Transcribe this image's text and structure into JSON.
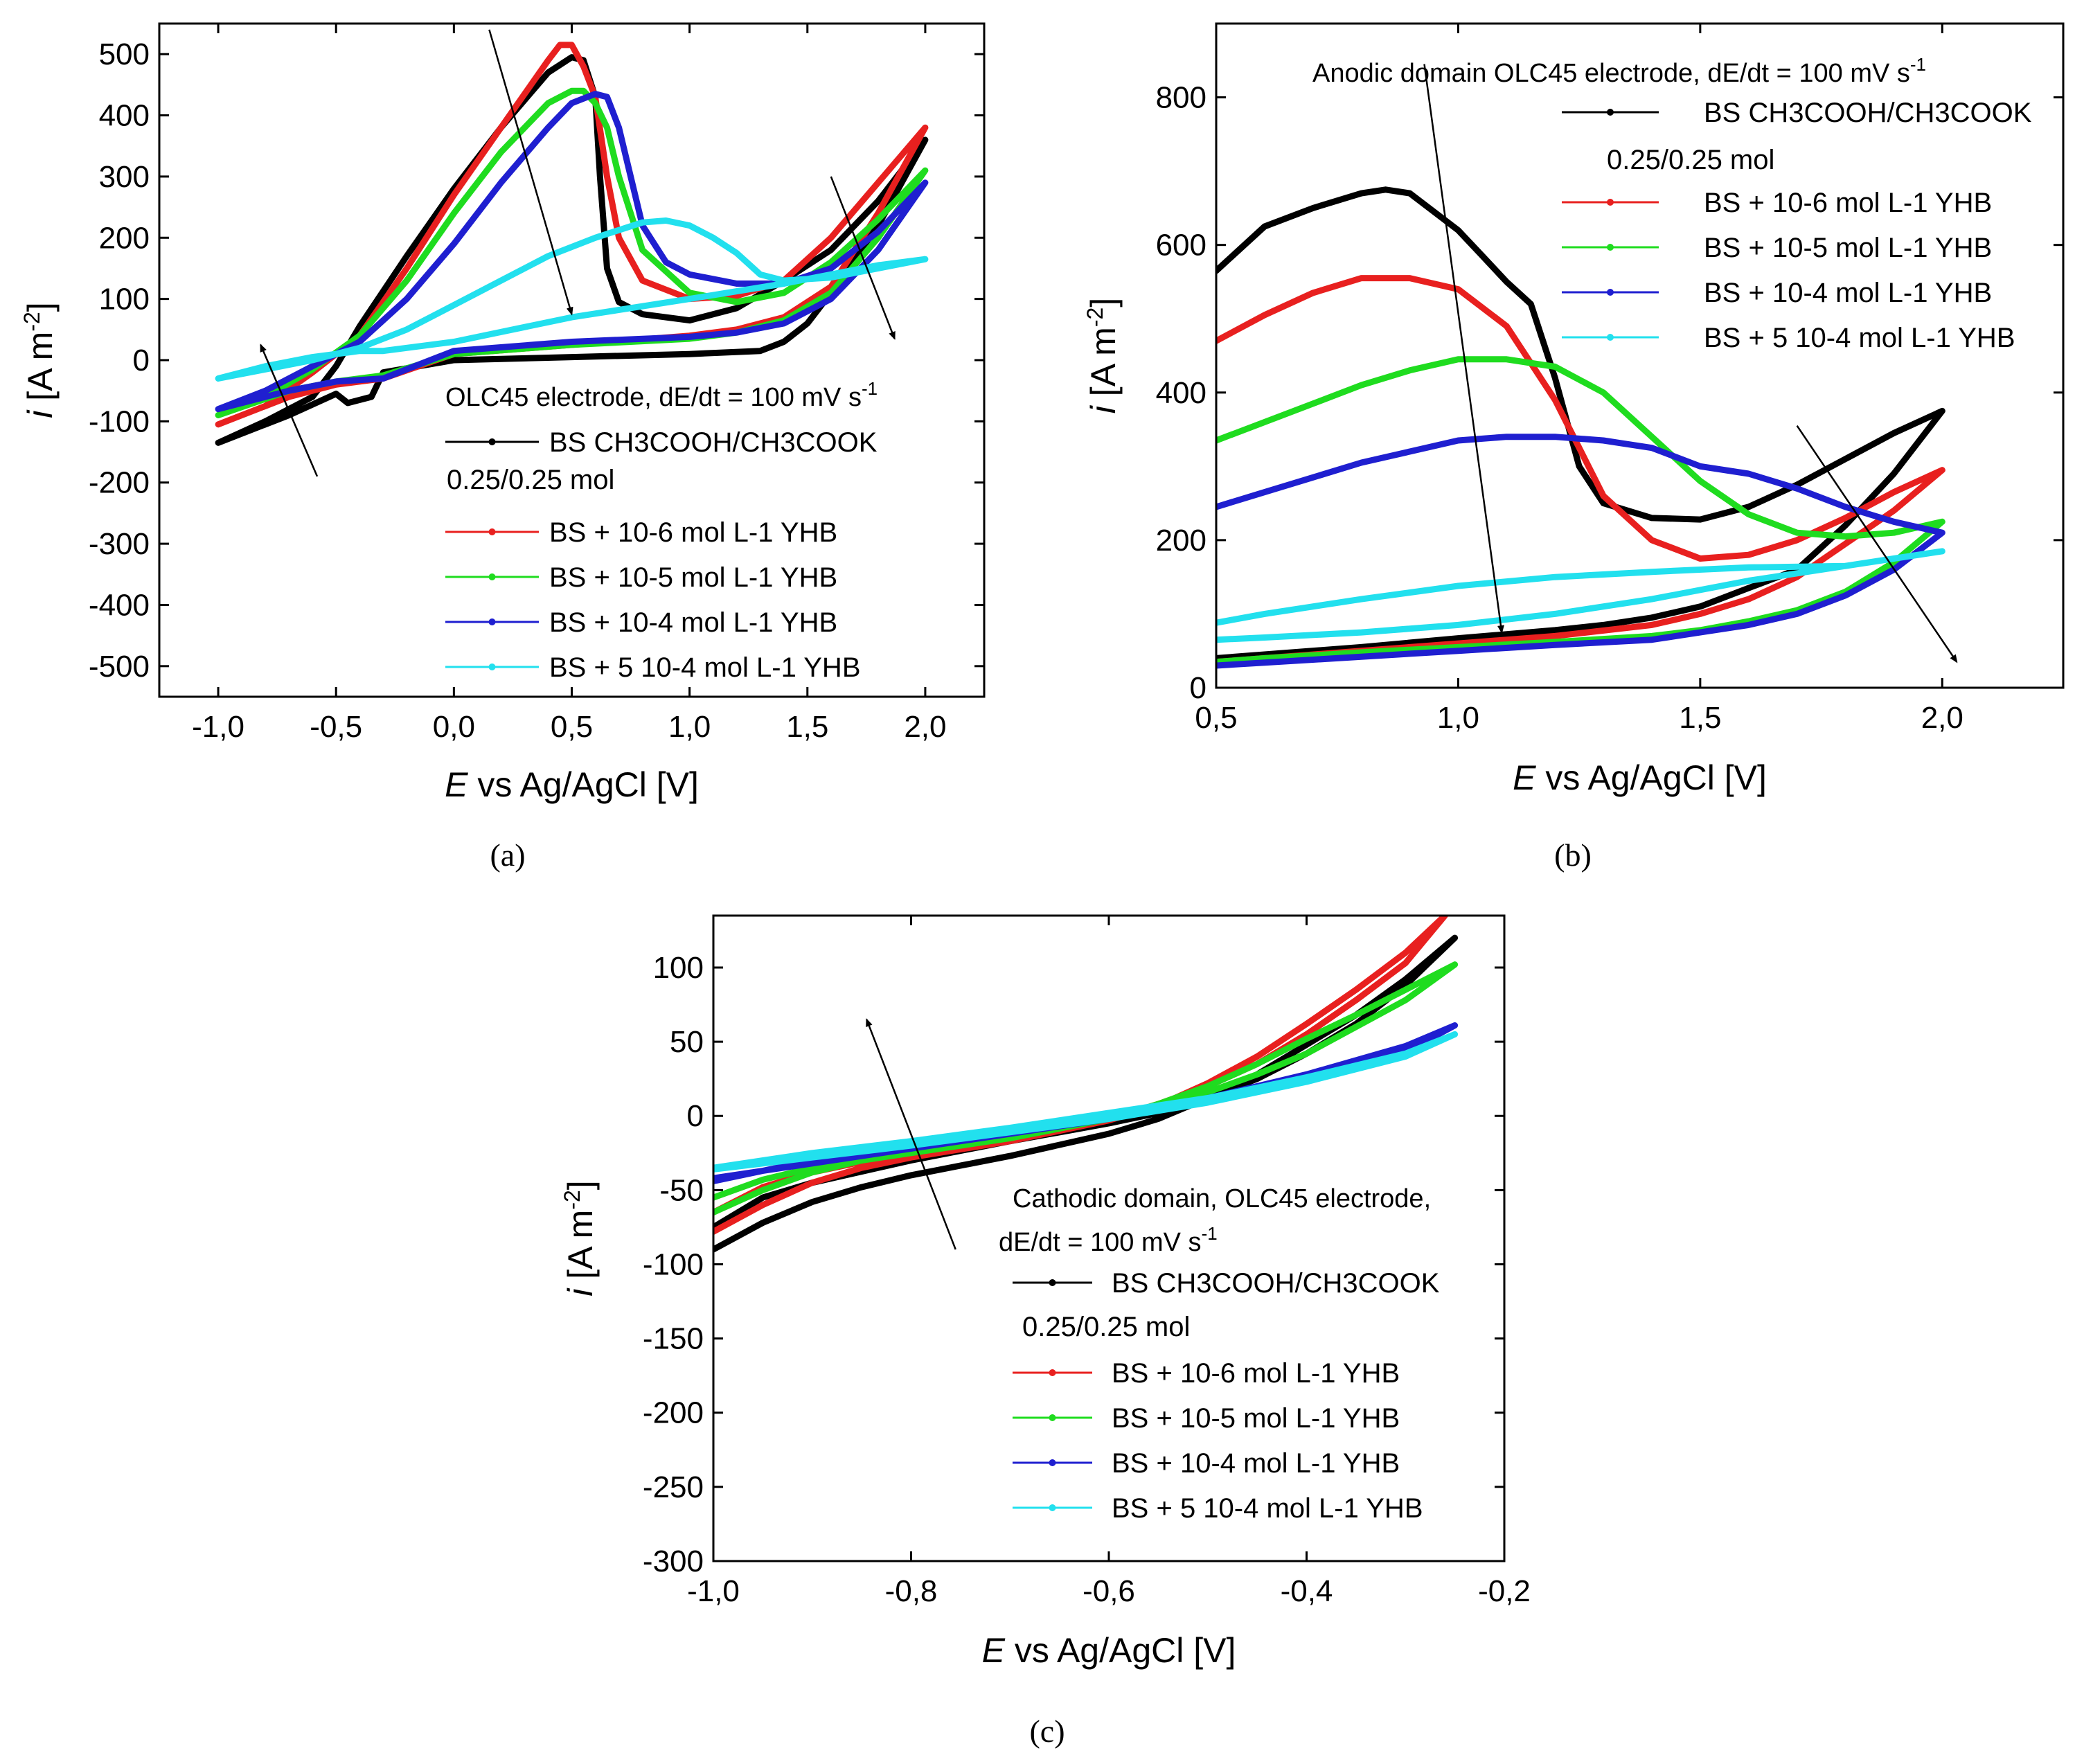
{
  "colors": {
    "bs": "#000000",
    "c1e6": "#e8201f",
    "c1e5": "#1fdc1f",
    "c1e4": "#1f1fd0",
    "c5e4": "#22e0ee"
  },
  "chart_data": [
    {
      "panel": "a",
      "panel_label": "(a)",
      "type": "line",
      "title": "OLC45 electrode, dE/dt = 100 mV s",
      "title_sup": "-1",
      "legend_note": "0.25/0.25 mol",
      "xlabel_italic": "E",
      "xlabel": " vs Ag/AgCl [V]",
      "ylabel_italic": "i",
      "ylabel": " [A m",
      "ylabel_sup": "-2",
      "ylabel_end": "]",
      "xlim": [
        -1.25,
        2.25
      ],
      "ylim": [
        -550,
        550
      ],
      "xticks": [
        "-1,0",
        "-0,5",
        "0,0",
        "0,5",
        "1,0",
        "1,5",
        "2,0"
      ],
      "yticks": [
        "-500",
        "-400",
        "-300",
        "-200",
        "-100",
        "0",
        "100",
        "200",
        "300",
        "400",
        "500"
      ],
      "series": [
        {
          "name": "BS CH3COOH/CH3COOK",
          "color": "bs",
          "x": [
            -1.0,
            -0.8,
            -0.6,
            -0.5,
            -0.4,
            -0.2,
            0.0,
            0.2,
            0.4,
            0.5,
            0.55,
            0.6,
            0.62,
            0.65,
            0.7,
            0.8,
            1.0,
            1.2,
            1.4,
            1.6,
            1.8,
            2.0,
            1.8,
            1.6,
            1.5,
            1.4,
            1.3,
            1.0,
            0.5,
            0.0,
            -0.3,
            -0.35,
            -0.45,
            -0.5,
            -0.7,
            -1.0
          ],
          "y": [
            -135,
            -100,
            -60,
            -10,
            55,
            170,
            280,
            380,
            470,
            495,
            490,
            430,
            300,
            150,
            95,
            75,
            65,
            85,
            130,
            180,
            260,
            360,
            220,
            110,
            60,
            30,
            15,
            10,
            5,
            0,
            -20,
            -60,
            -70,
            -55,
            -90,
            -135
          ]
        },
        {
          "name": "BS + 10-6 mol L-1 YHB",
          "color": "c1e6",
          "x": [
            -1.0,
            -0.8,
            -0.6,
            -0.4,
            -0.2,
            0.0,
            0.2,
            0.4,
            0.45,
            0.5,
            0.55,
            0.6,
            0.65,
            0.7,
            0.8,
            1.0,
            1.2,
            1.4,
            1.6,
            1.8,
            2.0,
            1.8,
            1.6,
            1.4,
            1.2,
            1.0,
            0.5,
            0.0,
            -0.3,
            -0.5,
            -0.7,
            -1.0
          ],
          "y": [
            -105,
            -75,
            -20,
            40,
            150,
            270,
            380,
            490,
            515,
            515,
            480,
            430,
            300,
            200,
            130,
            100,
            105,
            130,
            200,
            290,
            380,
            240,
            120,
            70,
            50,
            40,
            25,
            10,
            -30,
            -40,
            -60,
            -105
          ]
        },
        {
          "name": "BS + 10-5 mol L-1 YHB",
          "color": "c1e5",
          "x": [
            -1.0,
            -0.8,
            -0.6,
            -0.4,
            -0.2,
            0.0,
            0.2,
            0.4,
            0.5,
            0.55,
            0.6,
            0.65,
            0.7,
            0.8,
            1.0,
            1.2,
            1.4,
            1.6,
            1.8,
            2.0,
            1.8,
            1.6,
            1.4,
            1.2,
            1.0,
            0.5,
            0.0,
            -0.3,
            -0.5,
            -0.7,
            -1.0
          ],
          "y": [
            -90,
            -60,
            -15,
            40,
            130,
            240,
            340,
            420,
            440,
            440,
            420,
            380,
            300,
            180,
            110,
            95,
            110,
            160,
            230,
            310,
            200,
            110,
            65,
            45,
            35,
            25,
            10,
            -25,
            -35,
            -50,
            -90
          ]
        },
        {
          "name": "BS + 10-4 mol L-1 YHB",
          "color": "c1e4",
          "x": [
            -1.0,
            -0.8,
            -0.6,
            -0.4,
            -0.2,
            0.0,
            0.2,
            0.4,
            0.5,
            0.6,
            0.65,
            0.7,
            0.75,
            0.8,
            0.9,
            1.0,
            1.2,
            1.4,
            1.6,
            1.8,
            2.0,
            1.8,
            1.6,
            1.4,
            1.2,
            1.0,
            0.5,
            0.0,
            -0.3,
            -0.5,
            -0.7,
            -1.0
          ],
          "y": [
            -80,
            -50,
            -10,
            30,
            100,
            190,
            290,
            380,
            420,
            435,
            430,
            380,
            300,
            220,
            160,
            140,
            125,
            125,
            150,
            210,
            290,
            180,
            100,
            60,
            45,
            38,
            30,
            15,
            -30,
            -35,
            -50,
            -80
          ]
        },
        {
          "name": "BS + 5 10-4 mol L-1 YHB",
          "color": "c5e4",
          "x": [
            -1.0,
            -0.8,
            -0.6,
            -0.4,
            -0.2,
            0.0,
            0.2,
            0.4,
            0.6,
            0.8,
            0.9,
            1.0,
            1.1,
            1.2,
            1.3,
            1.4,
            1.6,
            1.8,
            2.0,
            1.8,
            1.6,
            1.4,
            1.0,
            0.5,
            0.0,
            -0.3,
            -0.4,
            -0.6,
            -0.8,
            -1.0
          ],
          "y": [
            -30,
            -15,
            0,
            20,
            50,
            90,
            130,
            170,
            200,
            225,
            228,
            220,
            200,
            175,
            140,
            130,
            135,
            150,
            165,
            155,
            140,
            125,
            100,
            70,
            30,
            15,
            15,
            5,
            -10,
            -30
          ]
        }
      ],
      "arrows": [
        {
          "from": [
            0.15,
            540
          ],
          "to": [
            0.5,
            75
          ]
        },
        {
          "from": [
            1.6,
            300
          ],
          "to": [
            1.87,
            35
          ]
        },
        {
          "from": [
            -0.58,
            -190
          ],
          "to": [
            -0.82,
            25
          ]
        }
      ]
    },
    {
      "panel": "b",
      "panel_label": "(b)",
      "type": "line",
      "title": "Anodic domain OLC45 electrode, dE/dt = 100 mV s",
      "title_sup": "-1",
      "legend_note": "0.25/0.25 mol",
      "xlabel_italic": "E",
      "xlabel": " vs Ag/AgCl [V]",
      "ylabel_italic": "i",
      "ylabel": " [A m",
      "ylabel_sup": "-2",
      "ylabel_end": "]",
      "xlim": [
        0.5,
        2.25
      ],
      "ylim": [
        0,
        900
      ],
      "xticks": [
        "0,5",
        "1,0",
        "1,5",
        "2,0"
      ],
      "yticks": [
        "0",
        "200",
        "400",
        "600",
        "800"
      ],
      "series": [
        {
          "name": "BS CH3COOH/CH3COOK",
          "color": "bs",
          "x": [
            0.5,
            0.6,
            0.7,
            0.8,
            0.85,
            0.9,
            1.0,
            1.05,
            1.1,
            1.15,
            1.2,
            1.25,
            1.3,
            1.4,
            1.5,
            1.6,
            1.7,
            1.8,
            1.9,
            2.0,
            1.9,
            1.8,
            1.7,
            1.6,
            1.5,
            1.4,
            1.3,
            1.2,
            1.0,
            0.8,
            0.6,
            0.5
          ],
          "y": [
            565,
            625,
            650,
            670,
            675,
            670,
            620,
            585,
            550,
            520,
            420,
            300,
            250,
            230,
            228,
            245,
            275,
            310,
            345,
            375,
            290,
            220,
            160,
            135,
            110,
            95,
            85,
            78,
            67,
            55,
            45,
            40
          ]
        },
        {
          "name": "BS + 10-6 mol L-1 YHB",
          "color": "c1e6",
          "x": [
            0.5,
            0.6,
            0.7,
            0.8,
            0.9,
            1.0,
            1.1,
            1.2,
            1.3,
            1.4,
            1.5,
            1.6,
            1.7,
            1.8,
            1.9,
            2.0,
            1.9,
            1.8,
            1.7,
            1.6,
            1.5,
            1.4,
            1.2,
            1.0,
            0.8,
            0.6,
            0.5
          ],
          "y": [
            470,
            505,
            535,
            555,
            555,
            540,
            490,
            390,
            260,
            200,
            175,
            180,
            200,
            230,
            265,
            295,
            240,
            195,
            150,
            120,
            100,
            85,
            70,
            60,
            50,
            40,
            35
          ]
        },
        {
          "name": "BS + 10-5 mol L-1 YHB",
          "color": "c1e5",
          "x": [
            0.5,
            0.6,
            0.7,
            0.8,
            0.9,
            1.0,
            1.1,
            1.2,
            1.3,
            1.4,
            1.5,
            1.6,
            1.7,
            1.8,
            1.9,
            2.0,
            1.9,
            1.8,
            1.7,
            1.6,
            1.5,
            1.4,
            1.2,
            1.0,
            0.8,
            0.6,
            0.5
          ],
          "y": [
            335,
            360,
            385,
            410,
            430,
            445,
            445,
            435,
            400,
            340,
            280,
            235,
            210,
            205,
            210,
            225,
            170,
            130,
            105,
            90,
            78,
            70,
            62,
            55,
            48,
            40,
            35
          ]
        },
        {
          "name": "BS + 10-4 mol L-1 YHB",
          "color": "c1e4",
          "x": [
            0.5,
            0.6,
            0.7,
            0.8,
            0.9,
            1.0,
            1.1,
            1.2,
            1.3,
            1.4,
            1.5,
            1.6,
            1.7,
            1.8,
            1.9,
            2.0,
            1.9,
            1.8,
            1.7,
            1.6,
            1.5,
            1.4,
            1.2,
            1.0,
            0.8,
            0.6,
            0.5
          ],
          "y": [
            245,
            265,
            285,
            305,
            320,
            335,
            340,
            340,
            335,
            325,
            300,
            290,
            270,
            245,
            225,
            210,
            160,
            125,
            100,
            85,
            75,
            65,
            58,
            50,
            42,
            34,
            30
          ]
        },
        {
          "name": "BS + 5 10-4 mol L-1 YHB",
          "color": "c5e4",
          "x": [
            0.5,
            0.6,
            0.8,
            1.0,
            1.2,
            1.4,
            1.6,
            1.8,
            2.0,
            1.9,
            1.8,
            1.6,
            1.4,
            1.2,
            1.0,
            0.8,
            0.6,
            0.5
          ],
          "y": [
            88,
            100,
            120,
            138,
            150,
            157,
            163,
            165,
            185,
            175,
            165,
            145,
            120,
            100,
            85,
            75,
            68,
            65
          ]
        }
      ],
      "arrows": [
        {
          "from": [
            0.93,
            845
          ],
          "to": [
            1.09,
            75
          ]
        },
        {
          "from": [
            1.7,
            355
          ],
          "to": [
            2.03,
            35
          ]
        }
      ]
    },
    {
      "panel": "c",
      "panel_label": "(c)",
      "type": "line",
      "title": "Cathodic domain, OLC45 electrode,",
      "title2": "dE/dt = 100 mV s",
      "title_sup": "-1",
      "legend_note": "0.25/0.25 mol",
      "xlabel_italic": "E",
      "xlabel": " vs Ag/AgCl [V]",
      "ylabel_italic": "i",
      "ylabel": " [A m",
      "ylabel_sup": "-2",
      "ylabel_end": "]",
      "xlim": [
        -1.0,
        -0.2
      ],
      "ylim": [
        -300,
        135
      ],
      "xticks": [
        "-1,0",
        "-0,8",
        "-0,6",
        "-0,4",
        "-0,2"
      ],
      "yticks": [
        "-300",
        "-250",
        "-200",
        "-150",
        "-100",
        "-50",
        "0",
        "50",
        "100"
      ],
      "series": [
        {
          "name": "BS CH3COOH/CH3COOK",
          "color": "bs",
          "x": [
            -1.0,
            -0.95,
            -0.9,
            -0.85,
            -0.8,
            -0.7,
            -0.6,
            -0.55,
            -0.5,
            -0.45,
            -0.4,
            -0.35,
            -0.3,
            -0.25,
            -0.3,
            -0.35,
            -0.4,
            -0.45,
            -0.5,
            -0.55,
            -0.6,
            -0.7,
            -0.8,
            -0.9,
            -0.95,
            -1.0
          ],
          "y": [
            -90,
            -72,
            -58,
            -48,
            -40,
            -27,
            -12,
            -2,
            12,
            28,
            48,
            68,
            92,
            120,
            88,
            62,
            42,
            25,
            12,
            2,
            -5,
            -17,
            -30,
            -45,
            -55,
            -75
          ]
        },
        {
          "name": "BS + 10-6 mol L-1 YHB",
          "color": "c1e6",
          "x": [
            -1.0,
            -0.95,
            -0.9,
            -0.85,
            -0.8,
            -0.7,
            -0.6,
            -0.55,
            -0.5,
            -0.45,
            -0.4,
            -0.35,
            -0.3,
            -0.26,
            -0.3,
            -0.35,
            -0.4,
            -0.45,
            -0.5,
            -0.55,
            -0.6,
            -0.7,
            -0.8,
            -0.9,
            -0.95,
            -1.0
          ],
          "y": [
            -78,
            -60,
            -45,
            -35,
            -28,
            -17,
            -3,
            7,
            22,
            40,
            62,
            85,
            110,
            135,
            103,
            78,
            55,
            35,
            20,
            8,
            -2,
            -13,
            -24,
            -38,
            -48,
            -65
          ]
        },
        {
          "name": "BS + 10-5 mol L-1 YHB",
          "color": "c1e5",
          "x": [
            -1.0,
            -0.95,
            -0.9,
            -0.85,
            -0.8,
            -0.7,
            -0.6,
            -0.55,
            -0.5,
            -0.45,
            -0.4,
            -0.35,
            -0.3,
            -0.25,
            -0.3,
            -0.35,
            -0.4,
            -0.45,
            -0.5,
            -0.55,
            -0.6,
            -0.7,
            -0.8,
            -0.9,
            -0.95,
            -1.0
          ],
          "y": [
            -65,
            -50,
            -38,
            -30,
            -25,
            -15,
            -2,
            8,
            20,
            35,
            52,
            68,
            85,
            102,
            78,
            60,
            42,
            28,
            16,
            6,
            -2,
            -12,
            -22,
            -35,
            -43,
            -55
          ]
        },
        {
          "name": "BS + 10-4 mol L-1 YHB",
          "color": "c1e4",
          "x": [
            -1.0,
            -0.9,
            -0.8,
            -0.7,
            -0.6,
            -0.5,
            -0.4,
            -0.3,
            -0.25,
            -0.3,
            -0.4,
            -0.5,
            -0.6,
            -0.7,
            -0.8,
            -0.9,
            -1.0
          ],
          "y": [
            -44,
            -30,
            -20,
            -10,
            0,
            12,
            28,
            47,
            61,
            43,
            25,
            10,
            -2,
            -12,
            -22,
            -32,
            -42
          ]
        },
        {
          "name": "BS + 5 10-4 mol L-1 YHB",
          "color": "c5e4",
          "x": [
            -1.0,
            -0.9,
            -0.8,
            -0.7,
            -0.6,
            -0.5,
            -0.4,
            -0.3,
            -0.25,
            -0.3,
            -0.4,
            -0.5,
            -0.6,
            -0.7,
            -0.8,
            -0.9,
            -1.0
          ],
          "y": [
            -35,
            -25,
            -17,
            -8,
            2,
            12,
            26,
            42,
            55,
            40,
            23,
            9,
            -2,
            -11,
            -20,
            -28,
            -36
          ]
        }
      ],
      "arrows": [
        {
          "from": [
            -0.755,
            -90
          ],
          "to": [
            -0.845,
            65
          ]
        }
      ]
    }
  ]
}
